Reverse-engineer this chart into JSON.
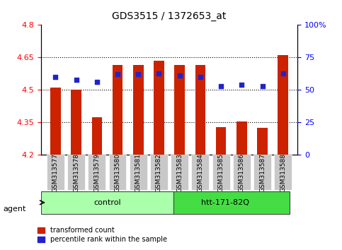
{
  "title": "GDS3515 / 1372653_at",
  "samples": [
    "GSM313577",
    "GSM313578",
    "GSM313579",
    "GSM313580",
    "GSM313581",
    "GSM313582",
    "GSM313583",
    "GSM313584",
    "GSM313585",
    "GSM313586",
    "GSM313587",
    "GSM313588"
  ],
  "transformed_count": [
    4.51,
    4.5,
    4.375,
    4.615,
    4.615,
    4.635,
    4.615,
    4.615,
    4.33,
    4.355,
    4.325,
    4.66
  ],
  "percentile_rank": [
    60,
    58,
    56,
    62,
    62,
    63,
    61,
    60,
    53,
    54,
    53,
    63
  ],
  "ymin": 4.2,
  "ymax": 4.8,
  "yticks": [
    4.2,
    4.35,
    4.5,
    4.65,
    4.8
  ],
  "ytick_labels": [
    "4.2",
    "4.35",
    "4.5",
    "4.65",
    "4.8"
  ],
  "y2ticks": [
    0,
    25,
    50,
    75,
    100
  ],
  "y2tick_labels": [
    "0",
    "25",
    "50",
    "75",
    "100%"
  ],
  "bar_color": "#cc2200",
  "dot_color": "#2222cc",
  "grid_color": "#000000",
  "bg_plot": "#ffffff",
  "bg_xticklabels": "#cccccc",
  "control_group": [
    "GSM313577",
    "GSM313578",
    "GSM313579",
    "GSM313580",
    "GSM313581",
    "GSM313582"
  ],
  "htt_group": [
    "GSM313583",
    "GSM313584",
    "GSM313585",
    "GSM313586",
    "GSM313587",
    "GSM313588"
  ],
  "control_label": "control",
  "htt_label": "htt-171-82Q",
  "agent_label": "agent",
  "legend_bar_label": "transformed count",
  "legend_dot_label": "percentile rank within the sample"
}
